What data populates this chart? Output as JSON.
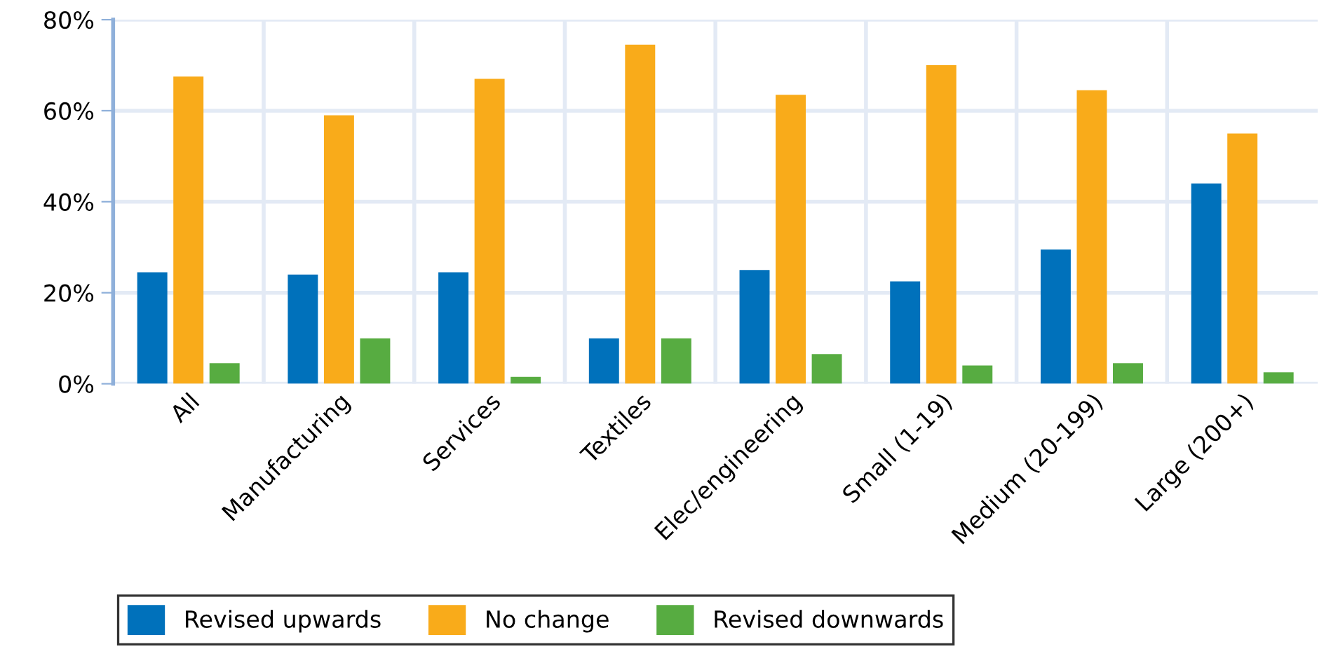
{
  "chart_data": {
    "type": "bar",
    "categories": [
      "All",
      "Manufacturing",
      "Services",
      "Textiles",
      "Elec/engineering",
      "Small (1-19)",
      "Medium (20-199)",
      "Large (200+)"
    ],
    "series": [
      {
        "name": "Revised upwards",
        "color": "#0071bb",
        "values": [
          24.5,
          24,
          24.5,
          10,
          25,
          22.5,
          29.5,
          44
        ]
      },
      {
        "name": "No change",
        "color": "#f9ab1a",
        "values": [
          67.5,
          59,
          67,
          74.5,
          63.5,
          70,
          64.5,
          55
        ]
      },
      {
        "name": "Revised downwards",
        "color": "#57ac41",
        "values": [
          4.5,
          10,
          1.5,
          10,
          6.5,
          4,
          4.5,
          2.5
        ]
      }
    ],
    "ylim": [
      0,
      80
    ],
    "yticks": [
      {
        "value": 0,
        "label": "0%"
      },
      {
        "value": 20,
        "label": "20%"
      },
      {
        "value": 40,
        "label": "40%"
      },
      {
        "value": 60,
        "label": "60%"
      },
      {
        "value": 80,
        "label": "80%"
      }
    ],
    "grid": true,
    "legend": "bottom"
  }
}
